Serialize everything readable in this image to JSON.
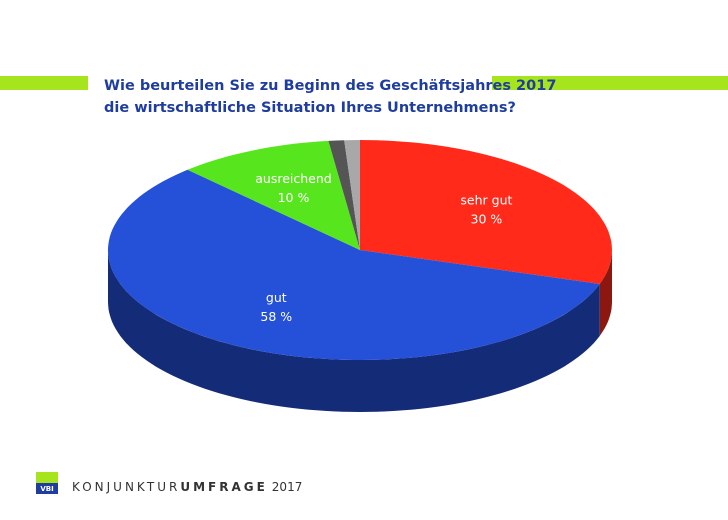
{
  "chart_data": {
    "type": "pie",
    "title": [
      "Wie beurteilen Sie zu Beginn des Geschäftsjahres 2017",
      "die wirtschaftliche Situation Ihres Unternehmens?"
    ],
    "categories": [
      "sehr gut",
      "gut",
      "ausreichend",
      null,
      null
    ],
    "values": [
      30,
      58,
      10,
      1,
      1
    ],
    "value_labels": [
      "30 %",
      "58 %",
      "10 %",
      null,
      null
    ],
    "colors": [
      "#ff2a1a",
      "#2550d8",
      "#57e61e",
      "#555555",
      "#a8a8a8"
    ]
  },
  "footer": {
    "logo": "VBI",
    "brand_light": "KONJUNKTUR",
    "brand_bold": "UMFRAGE",
    "year": "2017"
  }
}
